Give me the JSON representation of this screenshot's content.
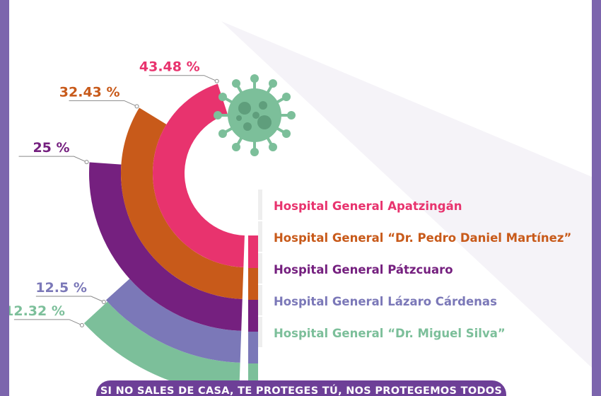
{
  "chart_data": {
    "type": "bar",
    "series": [
      {
        "name": "Hospital General Apatzingán",
        "value": 43.48,
        "value_label": "43.48 %",
        "color": "#e8336e"
      },
      {
        "name": "Hospital General “Dr. Pedro Daniel Martínez”",
        "value": 32.43,
        "value_label": "32.43 %",
        "color": "#c85a1a"
      },
      {
        "name": "Hospital General Pátzcuaro",
        "value": 25,
        "value_label": "25 %",
        "color": "#75207f"
      },
      {
        "name": "Hospital General Lázaro Cárdenas",
        "value": 12.5,
        "value_label": "12.5 %",
        "color": "#7b78b8"
      },
      {
        "name": "Hospital General “Dr. Miguel Silva”",
        "value": 12.32,
        "value_label": "12.32 %",
        "color": "#7cbf9a"
      }
    ]
  },
  "colors": {
    "border": "#7c65ad",
    "virus": "#7cbf9a",
    "banner": "#6d3f97"
  },
  "icon": "virus-icon",
  "footer": {
    "text": "SI NO SALES DE CASA, TE PROTEGES TÚ, NOS PROTEGEMOS TODOS"
  }
}
